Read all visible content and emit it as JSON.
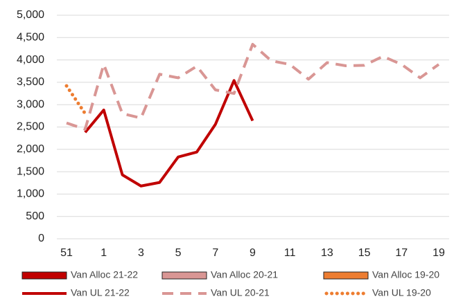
{
  "chart_data": {
    "type": "line",
    "categories": [
      "51",
      null,
      "1",
      null,
      "3",
      null,
      "5",
      null,
      "7",
      null,
      "9",
      null,
      "11",
      null,
      "13",
      null,
      "15",
      null,
      "17",
      null,
      "19"
    ],
    "ylim": [
      0,
      5000
    ],
    "yticks": [
      0,
      500,
      {
        "value": 1000,
        "label": "1,000"
      },
      {
        "value": 1500,
        "label": "1,500"
      },
      {
        "value": 2000,
        "label": "2,000"
      },
      {
        "value": 2500,
        "label": "2,500"
      },
      {
        "value": 3000,
        "label": "3,000"
      },
      {
        "value": 3500,
        "label": "3,500"
      },
      {
        "value": 4000,
        "label": "4,000"
      },
      {
        "value": 4500,
        "label": "4,500"
      },
      {
        "value": 5000,
        "label": "5,000"
      }
    ],
    "grid": true,
    "legend": "bottom",
    "series": [
      {
        "name": "Van Alloc 21-22",
        "type": "bar",
        "color": "#c00000",
        "values": [
          null,
          null,
          null,
          null,
          null,
          null,
          null,
          null,
          null,
          null,
          null,
          null,
          null,
          null,
          null,
          null,
          null,
          null,
          null,
          null,
          null
        ]
      },
      {
        "name": "Van Alloc 20-21",
        "type": "bar",
        "color": "#d99694",
        "values": [
          null,
          null,
          null,
          null,
          null,
          null,
          null,
          null,
          null,
          null,
          null,
          null,
          null,
          null,
          null,
          null,
          null,
          null,
          null,
          null,
          null
        ]
      },
      {
        "name": "Van Alloc 19-20",
        "type": "bar",
        "color": "#ed7d31",
        "values": [
          null,
          null,
          null,
          null,
          null,
          null,
          null,
          null,
          null,
          null,
          null,
          null,
          null,
          null,
          null,
          null,
          null,
          null,
          null,
          null,
          null
        ]
      },
      {
        "name": "Van UL 21-22",
        "type": "line",
        "style": "solid",
        "color": "#c00000",
        "values": [
          null,
          2380,
          2880,
          1430,
          1180,
          1260,
          1830,
          1940,
          2560,
          3540,
          2640,
          null,
          null,
          null,
          null,
          null,
          null,
          null,
          null,
          null,
          null
        ]
      },
      {
        "name": "Van UL 20-21",
        "type": "line",
        "style": "dashed",
        "color": "#d99694",
        "values": [
          2590,
          2450,
          3900,
          2800,
          2700,
          3680,
          3600,
          3860,
          3330,
          3250,
          4350,
          3980,
          3900,
          3570,
          3940,
          3870,
          3880,
          4080,
          3900,
          3600,
          3900
        ]
      },
      {
        "name": "Van UL 19-20",
        "type": "line",
        "style": "dotted",
        "color": "#ed7d31",
        "values": [
          3420,
          2800,
          null,
          null,
          null,
          null,
          null,
          null,
          null,
          null,
          null,
          null,
          null,
          null,
          null,
          null,
          null,
          null,
          null,
          null,
          null
        ]
      }
    ]
  }
}
